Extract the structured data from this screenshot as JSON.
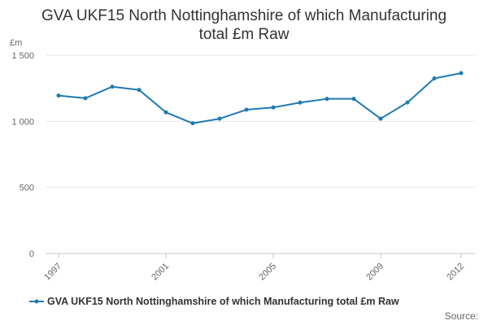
{
  "chart_data": {
    "type": "line",
    "title_lines": [
      "GVA UKF15 North Nottinghamshire of which Manufacturing",
      "total £m Raw"
    ],
    "ylabel": "£m",
    "xlabel": "",
    "ylim": [
      0,
      1500
    ],
    "yticks": [
      0,
      500,
      1000,
      1500
    ],
    "ytick_labels": [
      "0",
      "500",
      "1 000",
      "1 500"
    ],
    "xlim": [
      1997,
      2012
    ],
    "xticks": [
      1997,
      2001,
      2005,
      2009,
      2012
    ],
    "xtick_labels": [
      "1997",
      "2001",
      "2005",
      "2009",
      "2012"
    ],
    "grid": true,
    "legend_position": "bottom",
    "color": "#1f7ab3",
    "series": [
      {
        "name": "GVA UKF15 North Nottinghamshire of which Manufacturing total £m Raw",
        "x": [
          1997,
          1998,
          1999,
          2000,
          2001,
          2002,
          2003,
          2004,
          2005,
          2006,
          2007,
          2008,
          2009,
          2010,
          2011,
          2012
        ],
        "values": [
          1195,
          1175,
          1262,
          1238,
          1068,
          985,
          1020,
          1088,
          1105,
          1142,
          1170,
          1170,
          1020,
          1143,
          1325,
          1365
        ]
      }
    ]
  },
  "source_label": "Source:"
}
